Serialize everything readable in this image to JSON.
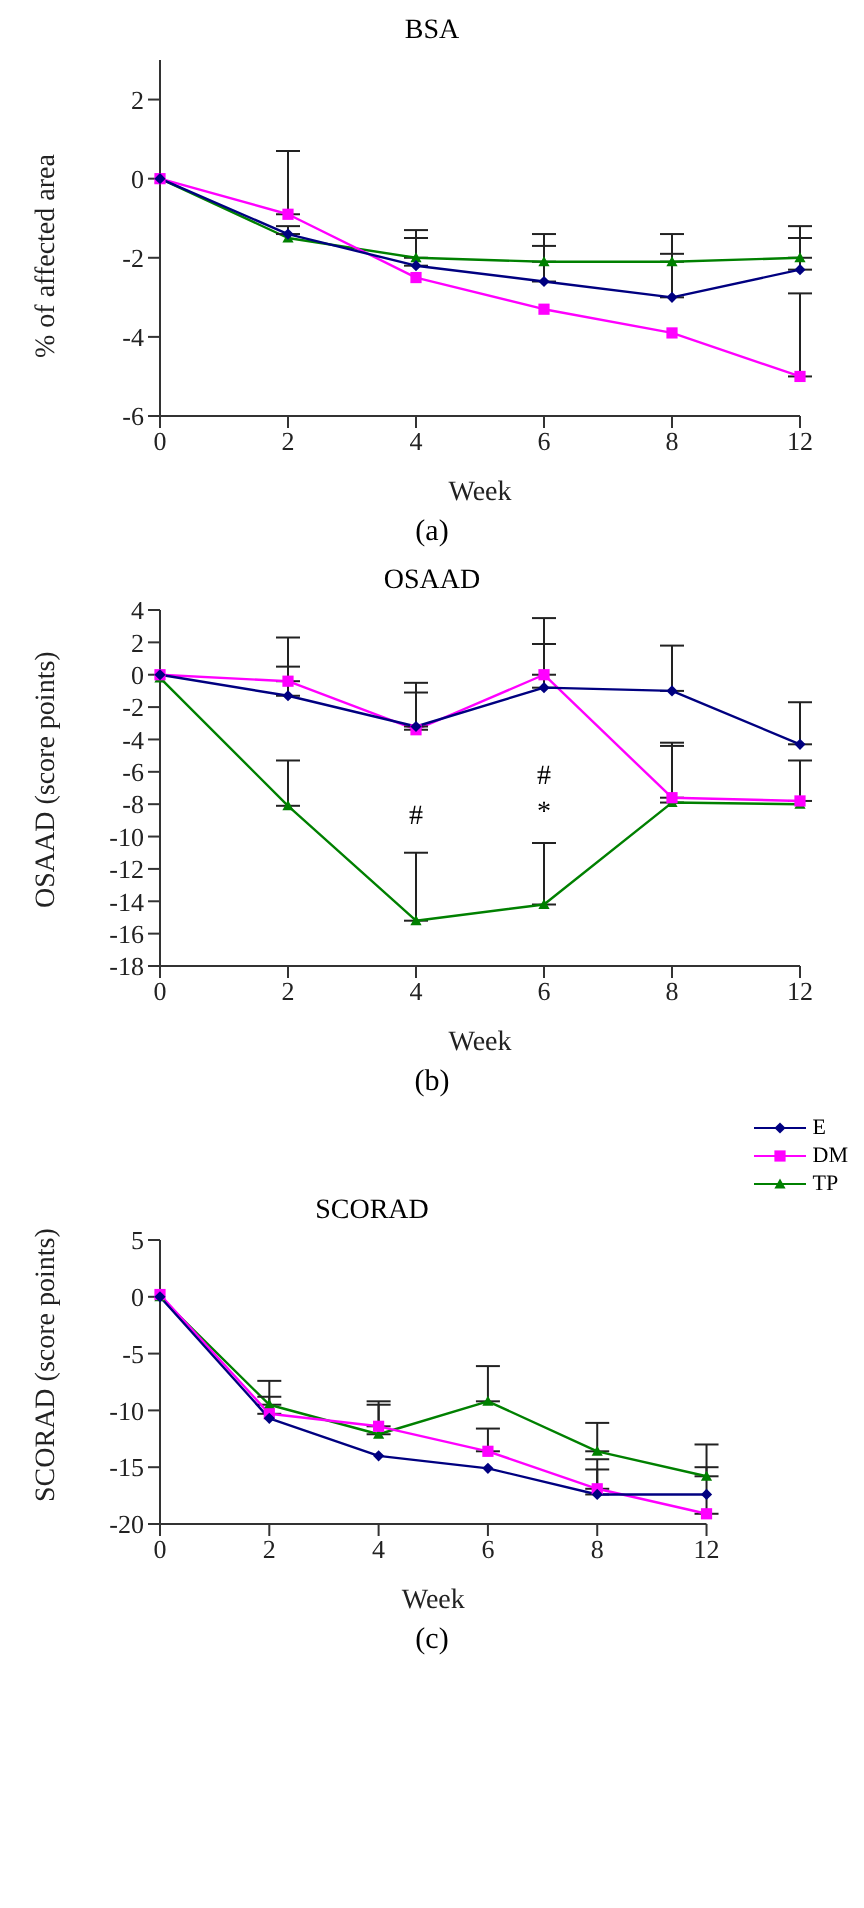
{
  "chart_data": [
    {
      "type": "line",
      "title": "BSA",
      "xlabel": "Week",
      "ylabel": "% of affected area",
      "categories": [
        "0",
        "2",
        "4",
        "6",
        "8",
        "12"
      ],
      "ylim": [
        -6,
        3
      ],
      "yticks": [
        -6,
        -4,
        -2,
        0,
        2
      ],
      "grid": false,
      "legend": false,
      "annotations": [
        "(a)"
      ],
      "series": [
        {
          "color": "#000080",
          "marker": "diamond",
          "values": [
            0,
            -1.4,
            -2.2,
            -2.6,
            -3.0,
            -2.3
          ],
          "errors": [
            null,
            [
              -1.4,
              -1.2
            ],
            [
              -2.2,
              -1.5
            ],
            [
              -2.6,
              -1.7
            ],
            [
              -3.0,
              -1.9
            ],
            [
              -2.3,
              -1.5
            ]
          ]
        },
        {
          "color": "#ff00ff",
          "marker": "square",
          "values": [
            0,
            -0.9,
            -2.5,
            -3.3,
            -3.9,
            -5.0
          ],
          "errors": [
            null,
            [
              -0.9,
              0.7
            ],
            null,
            null,
            null,
            [
              -5.0,
              -2.9
            ]
          ]
        },
        {
          "color": "#008000",
          "marker": "triangle",
          "values": [
            0,
            -1.5,
            -2.0,
            -2.1,
            -2.1,
            -2.0
          ],
          "errors": [
            null,
            null,
            [
              -2.0,
              -1.3
            ],
            [
              -2.1,
              -1.4
            ],
            [
              -2.1,
              -1.4
            ],
            [
              -2.0,
              -1.2
            ]
          ]
        }
      ]
    },
    {
      "type": "line",
      "title": "OSAAD",
      "xlabel": "Week",
      "ylabel": "OSAAD (score points)",
      "categories": [
        "0",
        "2",
        "4",
        "6",
        "8",
        "12"
      ],
      "ylim": [
        -18,
        4
      ],
      "yticks": [
        -18,
        -16,
        -14,
        -12,
        -10,
        -8,
        -6,
        -4,
        -2,
        0,
        2,
        4
      ],
      "grid": false,
      "legend": false,
      "annotations": [
        "#",
        "#",
        "*",
        "(b)"
      ],
      "series": [
        {
          "color": "#000080",
          "marker": "diamond",
          "values": [
            0,
            -1.3,
            -3.2,
            -0.8,
            -1.0,
            -4.3
          ],
          "errors": [
            null,
            [
              -1.3,
              0.5
            ],
            [
              -3.2,
              -1.1
            ],
            [
              -0.8,
              1.9
            ],
            [
              -1.0,
              1.8
            ],
            [
              -4.3,
              -1.7
            ]
          ]
        },
        {
          "color": "#ff00ff",
          "marker": "square",
          "values": [
            0,
            -0.4,
            -3.4,
            0,
            -7.6,
            -7.8
          ],
          "errors": [
            null,
            [
              -0.4,
              2.3
            ],
            [
              -3.4,
              -0.5
            ],
            [
              0,
              3.5
            ],
            [
              -7.6,
              -4.2
            ],
            [
              -7.8,
              -5.3
            ]
          ]
        },
        {
          "color": "#008000",
          "marker": "triangle",
          "values": [
            -0.2,
            -8.1,
            -15.2,
            -14.2,
            -7.9,
            -8.0
          ],
          "errors": [
            null,
            [
              -8.1,
              -5.3
            ],
            [
              -15.2,
              -11.0
            ],
            [
              -14.2,
              -10.4
            ],
            [
              -7.9,
              -4.4
            ],
            null
          ]
        }
      ]
    },
    {
      "type": "line",
      "title": "SCORAD",
      "xlabel": "Week",
      "ylabel": "SCORAD (score points)",
      "categories": [
        "0",
        "2",
        "4",
        "6",
        "8",
        "12"
      ],
      "ylim": [
        -20,
        5
      ],
      "yticks": [
        -20,
        -15,
        -10,
        -5,
        0,
        5
      ],
      "grid": false,
      "legend": "top right",
      "annotations": [
        "(c)"
      ],
      "series": [
        {
          "name": "E",
          "color": "#000080",
          "marker": "diamond",
          "values": [
            0,
            -10.7,
            -14.0,
            -15.1,
            -17.4,
            -17.4
          ],
          "errors": [
            null,
            null,
            null,
            null,
            [
              -17.4,
              -15.2
            ],
            null
          ]
        },
        {
          "name": "DM",
          "color": "#ff00ff",
          "marker": "square",
          "values": [
            0.2,
            -10.3,
            -11.4,
            -13.6,
            -16.9,
            -19.1
          ],
          "errors": [
            null,
            [
              -10.3,
              -8.8
            ],
            [
              -11.4,
              -9.2
            ],
            [
              -13.6,
              -11.6
            ],
            [
              -16.9,
              -14.3
            ],
            [
              -19.1,
              -15.0
            ]
          ]
        },
        {
          "name": "TP",
          "color": "#008000",
          "marker": "triangle",
          "values": [
            0,
            -9.5,
            -12.1,
            -9.2,
            -13.6,
            -15.8
          ],
          "errors": [
            null,
            [
              -9.5,
              -7.4
            ],
            [
              -12.1,
              -9.5
            ],
            [
              -9.2,
              -6.1
            ],
            [
              -13.6,
              -11.1
            ],
            [
              -15.8,
              -13.0
            ]
          ]
        }
      ]
    }
  ]
}
